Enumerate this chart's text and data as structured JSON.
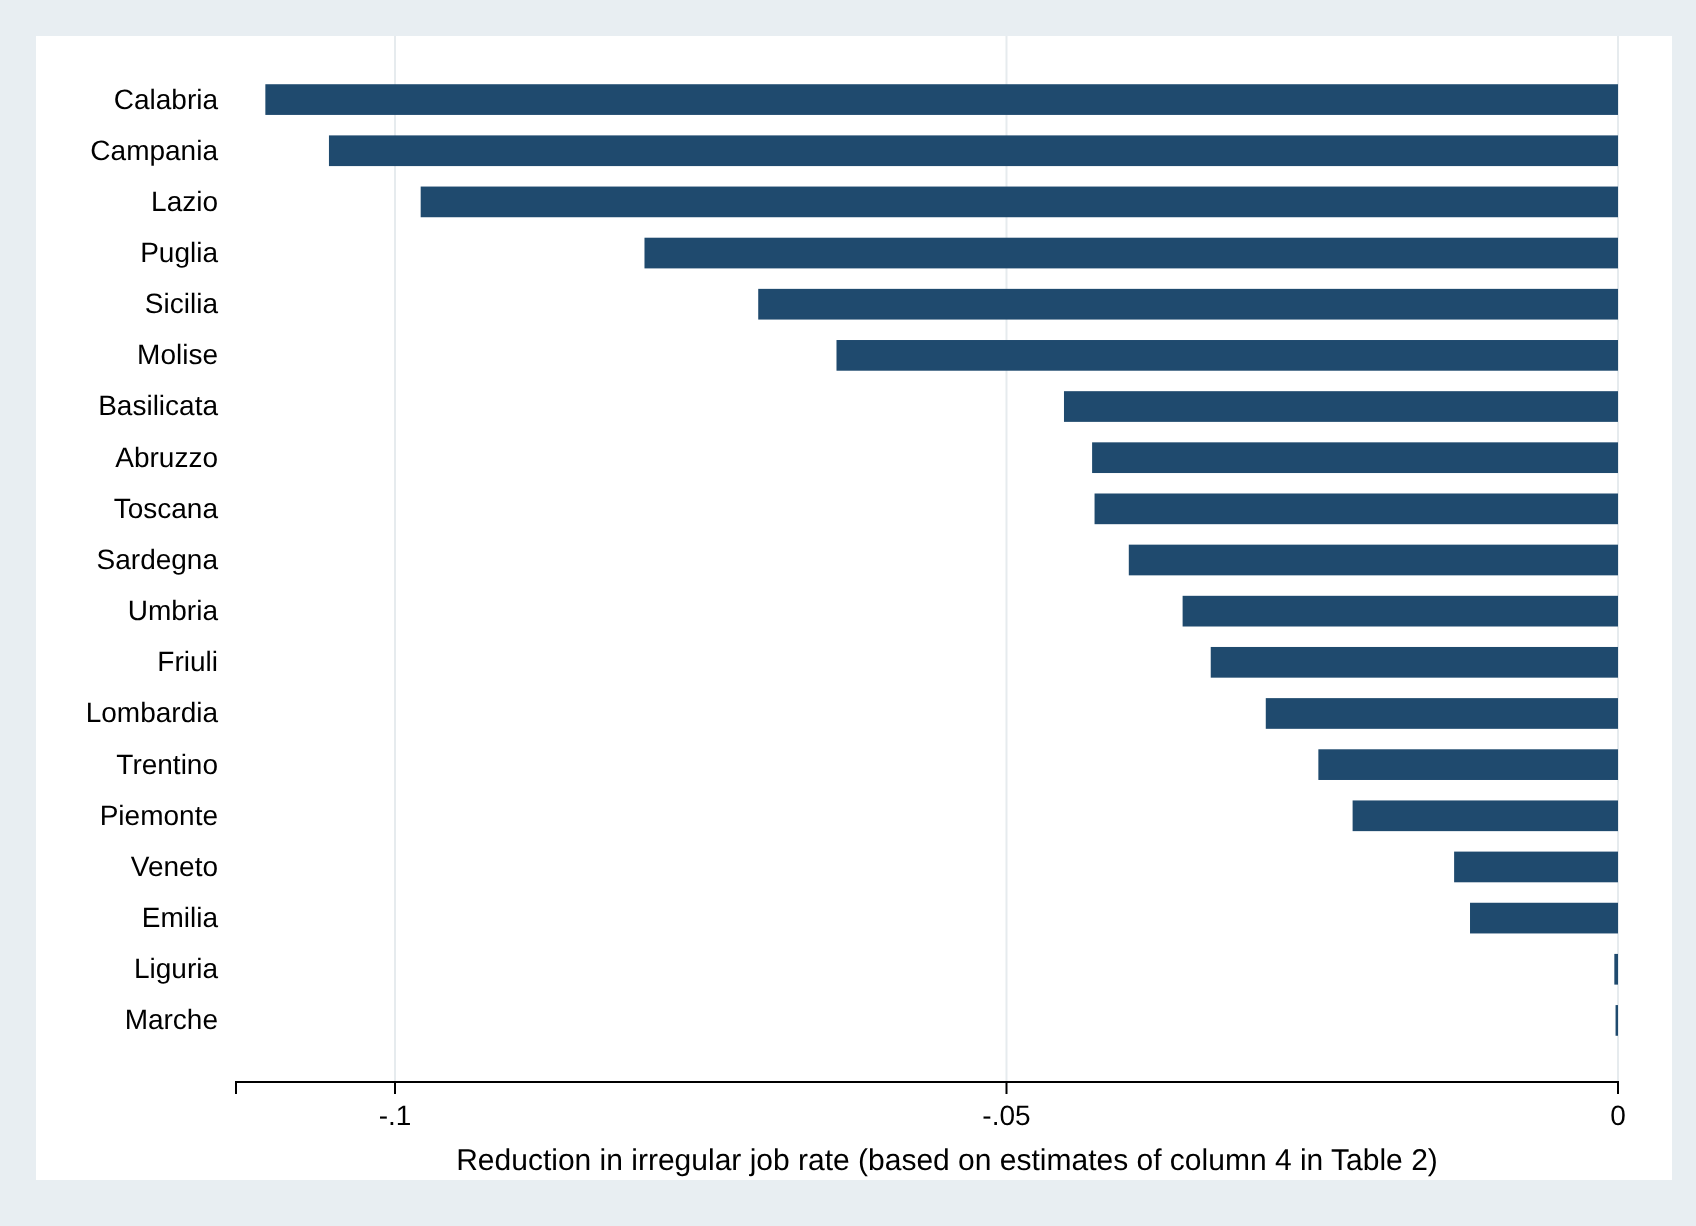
{
  "chart_data": {
    "type": "bar",
    "orientation": "horizontal",
    "xlabel": "Reduction in irregular job rate (based on estimates of column 4 in Table 2)",
    "categories": [
      "Calabria",
      "Campania",
      "Lazio",
      "Puglia",
      "Sicilia",
      "Molise",
      "Basilicata",
      "Abruzzo",
      "Toscana",
      "Sardegna",
      "Umbria",
      "Friuli",
      "Lombardia",
      "Trentino",
      "Piemonte",
      "Veneto",
      "Emilia",
      "Liguria",
      "Marche"
    ],
    "values": [
      -0.1106,
      -0.1054,
      -0.0979,
      -0.0796,
      -0.0703,
      -0.0639,
      -0.0453,
      -0.043,
      -0.0428,
      -0.04,
      -0.0356,
      -0.0333,
      -0.0288,
      -0.0245,
      -0.0217,
      -0.0134,
      -0.0121,
      -0.0003,
      -0.0002
    ],
    "color": "#1f4a6e",
    "xlim": [
      -0.113,
      0
    ],
    "xticks": [
      {
        "value": -0.1,
        "label": "-.1"
      },
      {
        "value": -0.05,
        "label": "-.05"
      },
      0
    ],
    "grid": "x"
  }
}
